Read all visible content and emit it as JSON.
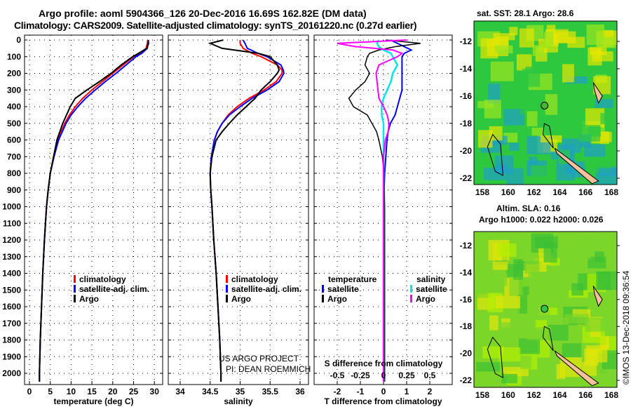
{
  "title_line1": "Argo profile: aoml 5904366_126 20-Dec-2016 16.69S 162.82E (DM data)",
  "title_line2": "Climatology: CARS2009. Satellite-adjusted climatology: synTS_20161220.nc (0.27d earlier)",
  "colors": {
    "climatology": "#ff0000",
    "satellite": "#0000ff",
    "argo": "#000000",
    "s_satellite": "#00e5ee",
    "s_argo": "#ff00ff"
  },
  "chart_data": [
    {
      "type": "line",
      "xlabel": "temperature (deg C)",
      "ylabel": "depth",
      "xlim": [
        -1,
        31
      ],
      "ylim": [
        2060,
        0
      ],
      "xticks": [
        "0",
        "5",
        "10",
        "15",
        "20",
        "25",
        "30"
      ],
      "yticks": [
        "0",
        "100",
        "200",
        "300",
        "400",
        "500",
        "600",
        "700",
        "800",
        "900",
        "1000",
        "1100",
        "1200",
        "1300",
        "1400",
        "1500",
        "1600",
        "1700",
        "1800",
        "1900",
        "2000"
      ],
      "legend": [
        "climatology",
        "satellite-adj. clim.",
        "Argo"
      ],
      "depth": [
        0,
        20,
        50,
        80,
        100,
        150,
        200,
        250,
        300,
        350,
        400,
        450,
        500,
        600,
        700,
        800,
        900,
        1000,
        1200,
        1400,
        1600,
        1800,
        2000,
        2050
      ],
      "series": [
        {
          "name": "climatology",
          "values": [
            28.4,
            28.3,
            28.0,
            26.5,
            25.0,
            22.5,
            20.0,
            17.5,
            15.0,
            12.8,
            11.0,
            9.6,
            8.5,
            6.8,
            5.8,
            5.0,
            4.5,
            4.1,
            3.6,
            3.2,
            2.9,
            2.6,
            2.4,
            2.4
          ]
        },
        {
          "name": "satellite-adj. clim.",
          "values": [
            28.6,
            28.5,
            28.3,
            27.0,
            25.6,
            23.2,
            20.8,
            18.2,
            15.8,
            13.5,
            11.6,
            10.0,
            8.8,
            7.0,
            5.9,
            5.0,
            4.5,
            4.1,
            3.6,
            3.2,
            2.9,
            2.6,
            2.4,
            2.4
          ]
        },
        {
          "name": "Argo",
          "values": [
            28.5,
            28.6,
            28.2,
            26.2,
            24.8,
            22.0,
            19.6,
            16.8,
            13.8,
            11.0,
            9.8,
            8.9,
            8.0,
            6.6,
            5.8,
            5.0,
            4.5,
            4.1,
            3.6,
            3.2,
            2.9,
            2.6,
            2.4,
            2.4
          ]
        }
      ]
    },
    {
      "type": "line",
      "xlabel": "salinity",
      "xlim": [
        33.8,
        36.1
      ],
      "ylim": [
        2060,
        0
      ],
      "xticks": [
        "34",
        "34.5",
        "35",
        "35.5",
        "36"
      ],
      "legend": [
        "climatology",
        "satellite-adj. clim.",
        "Argo"
      ],
      "footer": [
        "US ARGO PROJECT",
        "PI: DEAN ROEMMICH"
      ],
      "depth": [
        0,
        20,
        50,
        80,
        100,
        150,
        180,
        200,
        250,
        300,
        350,
        400,
        450,
        500,
        550,
        600,
        700,
        800,
        900,
        1000,
        1200,
        1400,
        1600,
        1800,
        2000,
        2050
      ],
      "series": [
        {
          "name": "climatology",
          "values": [
            35.0,
            35.0,
            35.05,
            35.2,
            35.35,
            35.62,
            35.7,
            35.7,
            35.6,
            35.4,
            35.15,
            34.95,
            34.8,
            34.7,
            34.62,
            34.57,
            34.52,
            34.5,
            34.51,
            34.53,
            34.56,
            34.6,
            34.63,
            34.66,
            34.68,
            34.68
          ]
        },
        {
          "name": "satellite-adj. clim.",
          "values": [
            35.05,
            35.08,
            35.12,
            35.3,
            35.45,
            35.68,
            35.72,
            35.73,
            35.65,
            35.45,
            35.2,
            35.0,
            34.82,
            34.7,
            34.62,
            34.57,
            34.52,
            34.5,
            34.51,
            34.53,
            34.56,
            34.6,
            34.63,
            34.66,
            34.68,
            34.68
          ]
        },
        {
          "name": "Argo",
          "values": [
            34.72,
            34.5,
            34.7,
            35.3,
            35.5,
            35.62,
            35.65,
            35.62,
            35.5,
            35.35,
            35.25,
            35.1,
            34.95,
            34.82,
            34.7,
            34.6,
            34.53,
            34.5,
            34.51,
            34.53,
            34.56,
            34.6,
            34.63,
            34.66,
            34.68,
            34.68
          ]
        }
      ]
    },
    {
      "type": "line",
      "xlabel": "T difference from climatology",
      "xlabel2": "S difference from climatology",
      "xlim": [
        -3,
        3
      ],
      "ylim": [
        2060,
        0
      ],
      "xticks": [
        "-2",
        "-1",
        "0",
        "1",
        "2"
      ],
      "xticks2": [
        "-0.5",
        "-0.25",
        "0",
        "0.25",
        "0.5"
      ],
      "legend_t": {
        "title": "temperature",
        "items": [
          "satellite",
          "Argo"
        ]
      },
      "legend_s": {
        "title": "salinity",
        "items": [
          "satellite",
          "Argo"
        ]
      },
      "depth": [
        0,
        20,
        40,
        60,
        80,
        100,
        150,
        200,
        250,
        300,
        350,
        400,
        450,
        500,
        550,
        600,
        700,
        800,
        1000,
        1500,
        2000,
        2050
      ],
      "series": [
        {
          "name": "T satellite",
          "values": [
            0.3,
            0.6,
            0.9,
            1.2,
            0.9,
            0.8,
            0.8,
            0.8,
            0.8,
            0.8,
            0.7,
            0.6,
            0.5,
            0.3,
            0.2,
            0.15,
            0.1,
            0.05,
            0.0,
            0.0,
            0.0,
            0.0
          ]
        },
        {
          "name": "T Argo",
          "values": [
            0.1,
            1.6,
            0.5,
            -0.2,
            -0.6,
            -0.7,
            -0.8,
            -0.6,
            -0.8,
            -1.2,
            -1.5,
            -1.3,
            -0.7,
            -0.5,
            -0.3,
            -0.2,
            -0.05,
            0.02,
            0.05,
            0.05,
            0.05,
            0.05
          ]
        },
        {
          "name": "S satellite",
          "values": [
            -0.05,
            -0.07,
            -0.05,
            0.0,
            0.08,
            0.1,
            0.15,
            0.1,
            0.08,
            0.04,
            0.0,
            -0.02,
            -0.02,
            0.0,
            0.0,
            0.0,
            0.0,
            0.0,
            0.0,
            0.0,
            0.0,
            0.0
          ]
        },
        {
          "name": "S Argo",
          "values": [
            0.25,
            -0.5,
            -0.3,
            0.1,
            0.2,
            0.15,
            -0.05,
            -0.08,
            -0.07,
            -0.06,
            -0.05,
            0.0,
            0.04,
            0.06,
            0.05,
            0.02,
            0.0,
            0.0,
            0.0,
            0.0,
            0.0,
            0.0
          ]
        }
      ]
    }
  ],
  "map_sst": {
    "title": "sat. SST: 28.1 Argo: 28.6",
    "lon_ticks": [
      "158",
      "160",
      "162",
      "164",
      "166",
      "168"
    ],
    "lat_ticks": [
      "-12",
      "-14",
      "-16",
      "-18",
      "-20",
      "-22"
    ]
  },
  "map_sla": {
    "title1": "Altim. SLA: 0.16",
    "title2": "Argo h1000: 0.022 h2000: 0.026",
    "lon_ticks": [
      "158",
      "160",
      "162",
      "164",
      "166",
      "168"
    ],
    "lat_ticks": [
      "-12",
      "-14",
      "-16",
      "-18",
      "-20",
      "-22"
    ]
  },
  "credit": "©IMOS 13-Dec-2018 09:36:54"
}
